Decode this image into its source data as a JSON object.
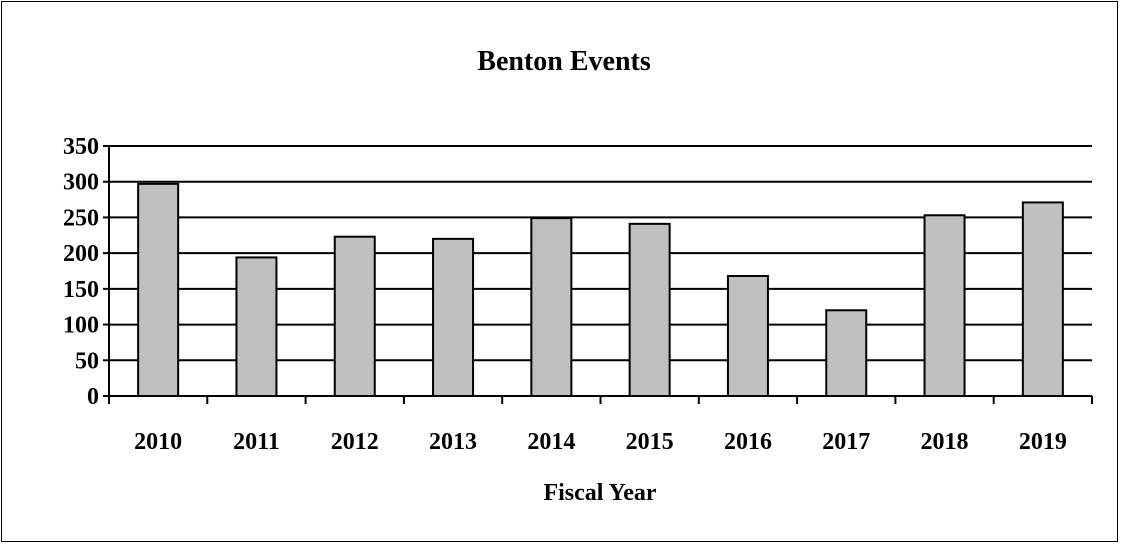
{
  "chart_data": {
    "type": "bar",
    "title": "Benton Events",
    "xlabel": "Fiscal Year",
    "ylabel": "",
    "categories": [
      "2010",
      "2011",
      "2012",
      "2013",
      "2014",
      "2015",
      "2016",
      "2017",
      "2018",
      "2019"
    ],
    "values": [
      297,
      194,
      223,
      220,
      249,
      241,
      168,
      120,
      253,
      271
    ],
    "ylim": [
      0,
      350
    ],
    "yticks": [
      "0",
      "50",
      "100",
      "150",
      "200",
      "250",
      "300",
      "350"
    ],
    "grid": true,
    "legend": "none",
    "colors": {
      "bar_fill": "#c0c0c0",
      "bar_stroke": "#000000",
      "grid": "#000000",
      "text": "#000000"
    }
  }
}
